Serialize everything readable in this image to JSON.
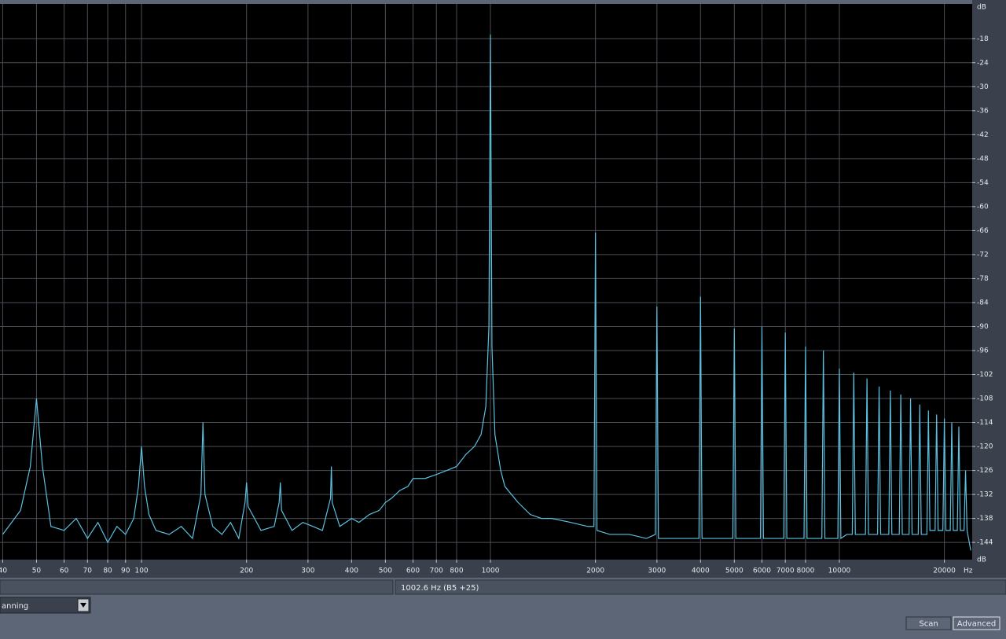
{
  "chart_data": {
    "type": "line",
    "x_scale": "log",
    "color": "#5cc0e0",
    "grid": true,
    "x_unit": "Hz",
    "y_unit": "dB",
    "xlim": [
      39.3,
      24030
    ],
    "ylim": [
      -148.3,
      -9.3
    ],
    "xticks": [
      40,
      50,
      60,
      70,
      80,
      90,
      100,
      200,
      300,
      400,
      500,
      600,
      700,
      800,
      1000,
      2000,
      3000,
      4000,
      5000,
      6000,
      7000,
      8000,
      10000,
      20000
    ],
    "yticks": [
      -18,
      -24,
      -30,
      -36,
      -42,
      -48,
      -54,
      -60,
      -66,
      -72,
      -78,
      -84,
      -90,
      -96,
      -102,
      -108,
      -114,
      -120,
      -126,
      -132,
      -138,
      -144
    ],
    "x": [
      40,
      45,
      48,
      50,
      52,
      55,
      60,
      65,
      70,
      75,
      80,
      85,
      90,
      95,
      98,
      100,
      102,
      105,
      110,
      120,
      130,
      140,
      148,
      150,
      152,
      160,
      170,
      180,
      190,
      198,
      200,
      202,
      220,
      240,
      248,
      250,
      252,
      270,
      290,
      310,
      330,
      348,
      350,
      352,
      370,
      400,
      420,
      450,
      480,
      500,
      520,
      550,
      580,
      600,
      650,
      700,
      750,
      800,
      850,
      900,
      940,
      970,
      990,
      1000,
      1010,
      1030,
      1070,
      1100,
      1200,
      1300,
      1400,
      1500,
      1700,
      1900,
      1980,
      2000,
      2020,
      2200,
      2500,
      2800,
      2970,
      3000,
      3030,
      3300,
      3600,
      3960,
      4000,
      4040,
      4500,
      4950,
      5000,
      5050,
      5500,
      5940,
      6000,
      6060,
      6500,
      6930,
      7000,
      7070,
      7500,
      7920,
      8000,
      8080,
      8500,
      8910,
      9000,
      9090,
      9500,
      9900,
      10000,
      10100,
      10500,
      10890,
      11000,
      11110,
      11500,
      11880,
      12000,
      12120,
      12500,
      12870,
      13000,
      13130,
      13500,
      13860,
      14000,
      14140,
      14500,
      14850,
      15000,
      15150,
      15500,
      15840,
      16000,
      16160,
      16500,
      16830,
      17000,
      17170,
      17500,
      17820,
      18000,
      18180,
      18500,
      18810,
      19000,
      19190,
      19500,
      19800,
      20000,
      20200,
      20500,
      20790,
      21000,
      21210,
      21500,
      21780,
      22000,
      22220,
      22500,
      22770,
      23000,
      23230,
      23800
    ],
    "values": [
      -142,
      -136,
      -125,
      -108,
      -125,
      -140,
      -141,
      -138,
      -143,
      -139,
      -144,
      -140,
      -142,
      -138,
      -130,
      -120,
      -130,
      -137,
      -141,
      -142,
      -140,
      -143,
      -132,
      -114,
      -132,
      -140,
      -142,
      -139,
      -143,
      -134,
      -129,
      -135,
      -141,
      -140,
      -134,
      -129,
      -136,
      -141,
      -139,
      -140,
      -141,
      -133,
      -125,
      -134,
      -140,
      -138,
      -139,
      -137,
      -136,
      -134,
      -133,
      -131,
      -130,
      -128,
      -128,
      -127,
      -126,
      -125,
      -122,
      -120,
      -117,
      -110,
      -90,
      -17,
      -95,
      -117,
      -126,
      -130,
      -134,
      -137,
      -138,
      -138,
      -139,
      -140,
      -140,
      -66.5,
      -141,
      -142,
      -142,
      -143,
      -142,
      -85,
      -143,
      -143,
      -143,
      -143,
      -82.5,
      -143,
      -143,
      -143,
      -90.5,
      -143,
      -143,
      -143,
      -90,
      -143,
      -143,
      -143,
      -91.5,
      -143,
      -143,
      -143,
      -95,
      -143,
      -143,
      -143,
      -96,
      -143,
      -143,
      -143,
      -100.5,
      -143,
      -142,
      -142,
      -101.5,
      -142,
      -142,
      -142,
      -103,
      -142,
      -142,
      -142,
      -105,
      -142,
      -142,
      -142,
      -106,
      -142,
      -142,
      -142,
      -107,
      -142,
      -142,
      -142,
      -108,
      -142,
      -142,
      -142,
      -109.5,
      -142,
      -142,
      -142,
      -111,
      -141,
      -141,
      -141,
      -112,
      -141,
      -141,
      -141,
      -113,
      -141,
      -141,
      -141,
      -114,
      -141,
      -141,
      -141,
      -115,
      -141,
      -141,
      -141,
      -126,
      -141,
      -146
    ]
  },
  "status": "1002.6 Hz (B5 +25)",
  "window_dropdown": "anning",
  "buttons": [
    "Scan",
    "Advanced"
  ]
}
